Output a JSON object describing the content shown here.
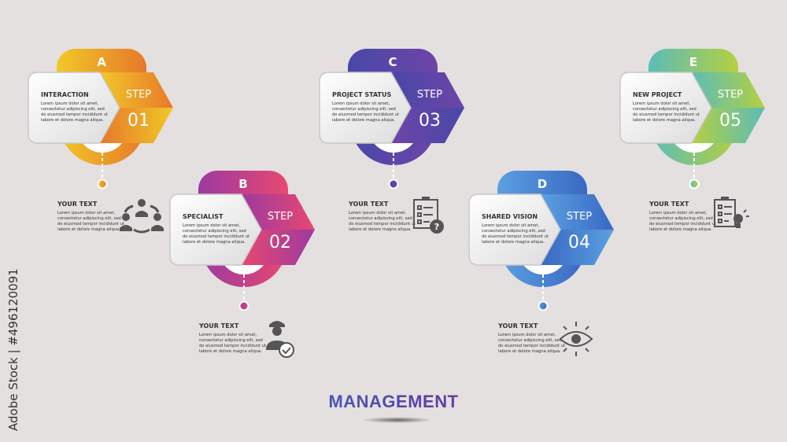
{
  "title": "MANAGEMENT",
  "side_text": "Adobe Stock | #496120091",
  "steps": [
    {
      "letter": "A",
      "title": "INTERACTION",
      "step_label": "STEP",
      "number": "01",
      "body": [
        "Lorem ipsum dolor sit amet,",
        "consectetur adipiscing elit, sed",
        "do eiusmod tempor incididunt ut",
        "labore et dolore magna aliqua."
      ],
      "your_text": "YOUR TEXT",
      "your_body": [
        "Lorem ipsum dolor sit amet,",
        "consectetur adipiscing elit, sed",
        "do eiusmod tempor incididunt ut",
        "labore et dolore magna aliqua."
      ],
      "icon": "team-cycle-icon",
      "colors": [
        "#f0c828",
        "#e8782a"
      ]
    },
    {
      "letter": "B",
      "title": "SPECIALIST",
      "step_label": "STEP",
      "number": "02",
      "body": [
        "Lorem ipsum dolor sit amet,",
        "consectetur adipiscing elit, sed",
        "do eiusmod tempor incididunt ut",
        "labore et dolore magna aliqua."
      ],
      "your_text": "YOUR TEXT",
      "your_body": [
        "Lorem ipsum dolor sit amet,",
        "consectetur adipiscing elit, sed",
        "do eiusmod tempor incididunt ut",
        "labore et dolore magna aliqua."
      ],
      "icon": "engineer-check-icon",
      "colors": [
        "#9c3aa0",
        "#e84870"
      ]
    },
    {
      "letter": "C",
      "title": "PROJECT STATUS",
      "step_label": "STEP",
      "number": "03",
      "body": [
        "Lorem ipsum dolor sit amet,",
        "consectetur adipiscing elit, sed",
        "do eiusmod tempor incididunt ut",
        "labore et dolore magna aliqua."
      ],
      "your_text": "YOUR TEXT",
      "your_body": [
        "Lorem ipsum dolor sit amet,",
        "consectetur adipiscing elit, sed",
        "do eiusmod tempor incididunt ut",
        "labore et dolore magna aliqua."
      ],
      "icon": "checklist-question-icon",
      "colors": [
        "#4848a8",
        "#6e44a8"
      ]
    },
    {
      "letter": "D",
      "title": "SHARED VISION",
      "step_label": "STEP",
      "number": "04",
      "body": [
        "Lorem ipsum dolor sit amet,",
        "consectetur adipiscing elit, sed",
        "do eiusmod tempor incididunt ut",
        "labore et dolore magna aliqua."
      ],
      "your_text": "YOUR TEXT",
      "your_body": [
        "Lorem ipsum dolor sit amet,",
        "consectetur adipiscing elit, sed",
        "do eiusmod tempor incididunt ut",
        "labore et dolore magna aliqua."
      ],
      "icon": "eye-icon",
      "colors": [
        "#5aa0e0",
        "#3a68c4"
      ]
    },
    {
      "letter": "E",
      "title": "NEW PROJECT",
      "step_label": "STEP",
      "number": "05",
      "body": [
        "Lorem ipsum dolor sit amet,",
        "consectetur adipiscing elit, sed",
        "do eiusmod tempor incididunt ut",
        "labore et dolore magna aliqua."
      ],
      "your_text": "YOUR TEXT",
      "your_body": [
        "Lorem ipsum dolor sit amet,",
        "consectetur adipiscing elit, sed",
        "do eiusmod tempor incididunt ut",
        "labore et dolore magna aliqua."
      ],
      "icon": "checklist-idea-icon",
      "colors": [
        "#5cbcb8",
        "#b4d040"
      ]
    }
  ]
}
